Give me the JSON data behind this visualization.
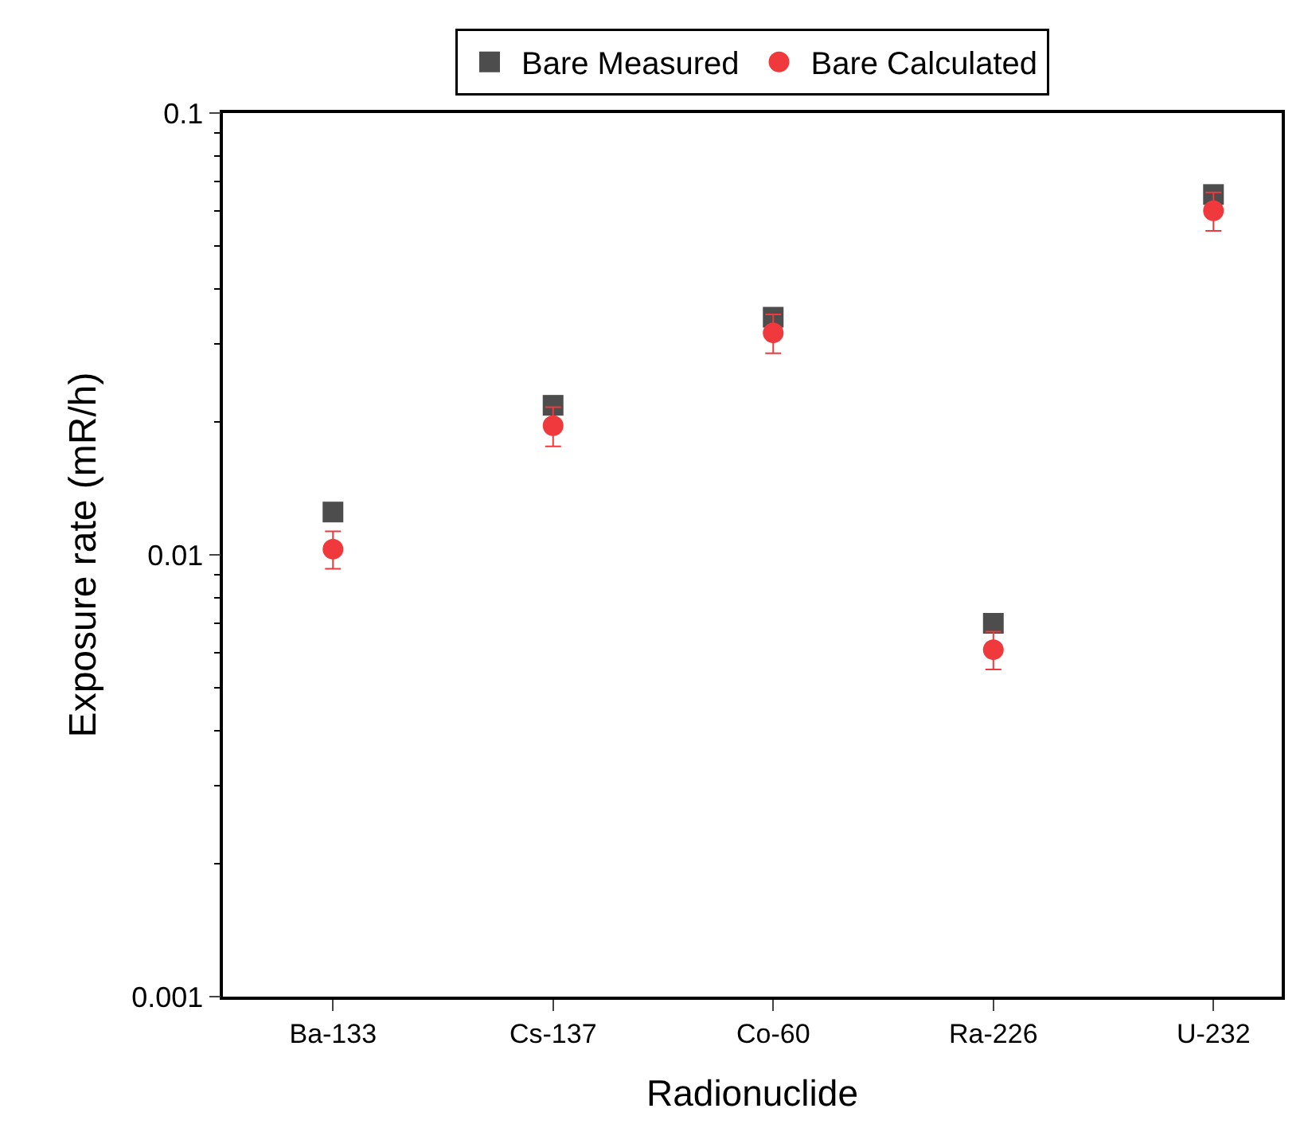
{
  "chart_data": {
    "type": "scatter",
    "xlabel": "Radionuclide",
    "ylabel": "Exposure rate (mR/h)",
    "categories": [
      "Ba-133",
      "Cs-137",
      "Co-60",
      "Ra-226",
      "U-232"
    ],
    "series": [
      {
        "name": "Bare Measured",
        "color": "#4d4d4d",
        "marker": "square",
        "values": [
          0.0125,
          0.0218,
          0.0345,
          0.007,
          0.0654
        ]
      },
      {
        "name": "Bare Calculated",
        "color": "#f0393c",
        "marker": "circle",
        "values": [
          0.0103,
          0.0196,
          0.0318,
          0.0061,
          0.0601
        ],
        "errors": [
          0.001,
          0.002,
          0.0032,
          0.0006,
          0.006
        ]
      }
    ],
    "log": "y",
    "ylim": [
      0.001,
      0.1
    ],
    "yticks": [
      0.001,
      0.01,
      0.1
    ],
    "legend": "top"
  }
}
